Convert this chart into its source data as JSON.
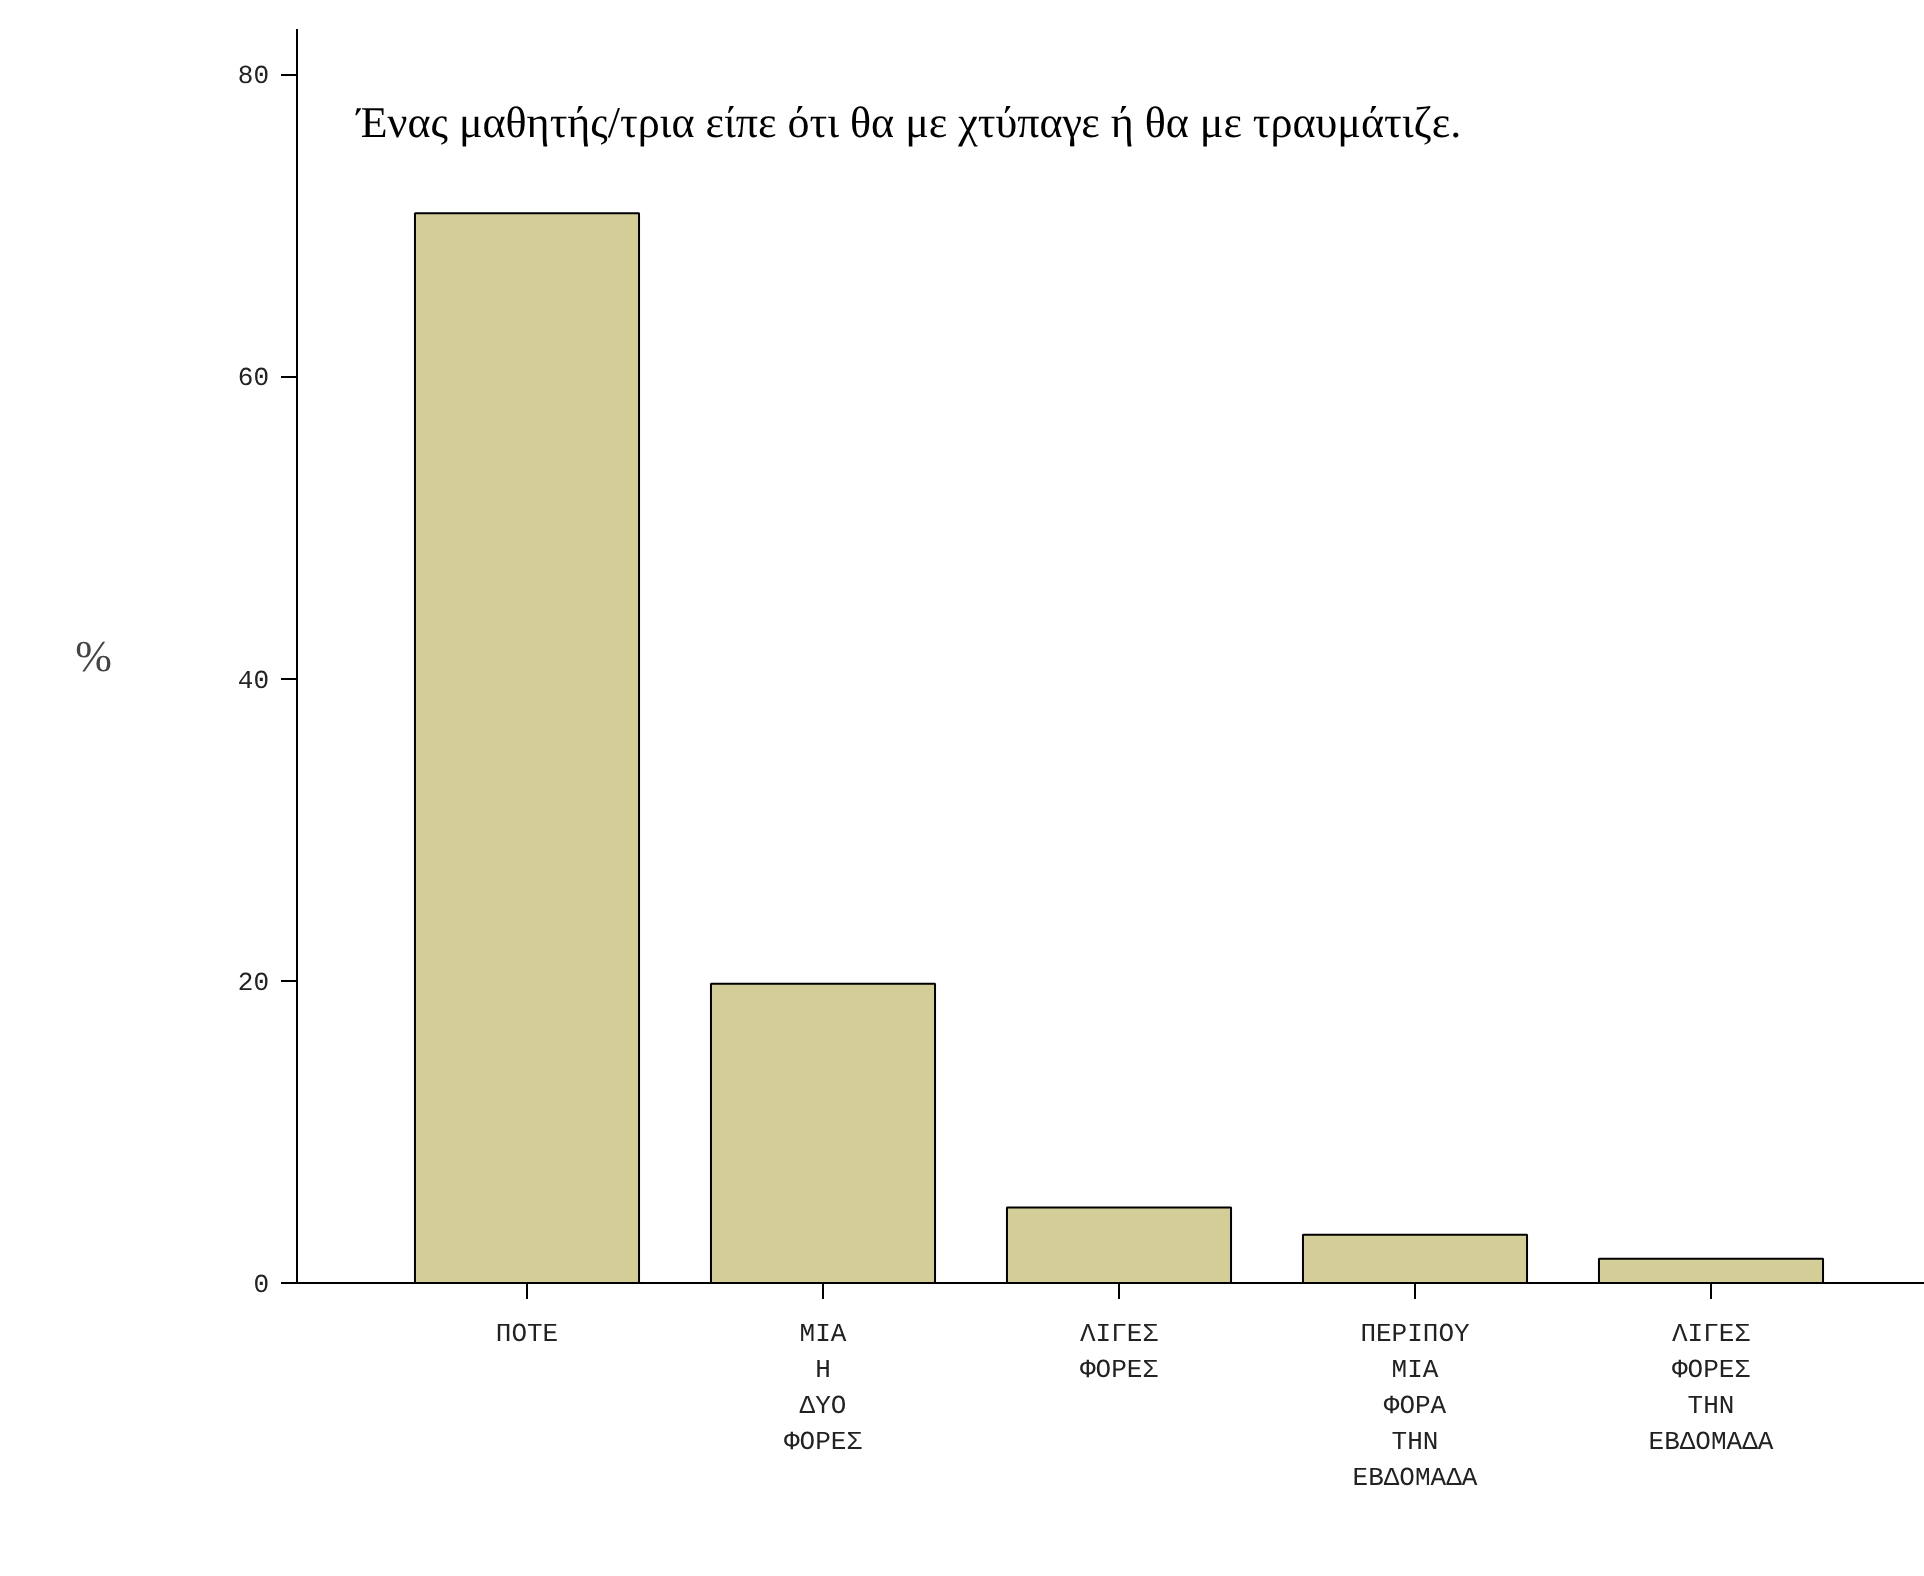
{
  "chart_data": {
    "type": "bar",
    "title": "Ένας μαθητής/τρια είπε ότι θα με χτύπαγε ή θα με τραυμάτιζε.",
    "ylabel": "%",
    "categories": [
      "ΠΟΤΕ",
      "ΜΙΑ Η ΔΥΟ ΦΟΡΕΣ",
      "ΛΙΓΕΣ ΦΟΡΕΣ",
      "ΠΕΡΙΠΟΥ ΜΙΑ ΦΟΡΑ ΤΗΝ ΕΒΔΟΜΑΔΑ",
      "ΛΙΓΕΣ ΦΟΡΕΣ ΤΗΝ ΕΒΔΟΜΑΔΑ"
    ],
    "values": [
      70.8,
      19.8,
      5.0,
      3.2,
      1.6
    ],
    "color": "#d3ce97",
    "ylim": [
      0,
      83
    ],
    "yticks": [
      0,
      20,
      40,
      60,
      80
    ],
    "grid": false
  }
}
